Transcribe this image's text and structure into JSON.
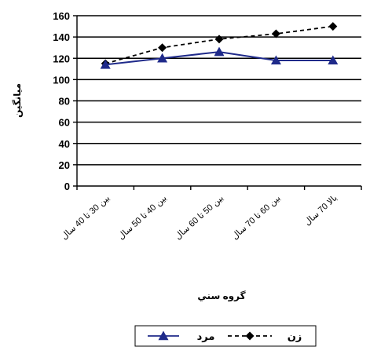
{
  "chart_data": {
    "type": "line",
    "title": "",
    "xlabel": "گروه سني",
    "ylabel": "ميانگين",
    "ylim": [
      0,
      160
    ],
    "yticks": [
      0,
      20,
      40,
      60,
      80,
      100,
      120,
      140,
      160
    ],
    "categories": [
      "بين 30 تا 40 سال",
      "بين 40 تا 50 سال",
      "بين 50 تا 60 سال",
      "بين 60 تا 70 سال",
      "بالا 70 سال"
    ],
    "grid": "horizontal",
    "legend": "bottom",
    "series": [
      {
        "name": "مرد",
        "values": [
          114,
          120,
          126,
          118,
          118
        ],
        "color": "#1f2a8a",
        "marker": "triangle",
        "dash": "solid"
      },
      {
        "name": "زن",
        "values": [
          115,
          130,
          138,
          143,
          150
        ],
        "color": "#000000",
        "marker": "diamond",
        "dash": "dashed"
      }
    ]
  }
}
